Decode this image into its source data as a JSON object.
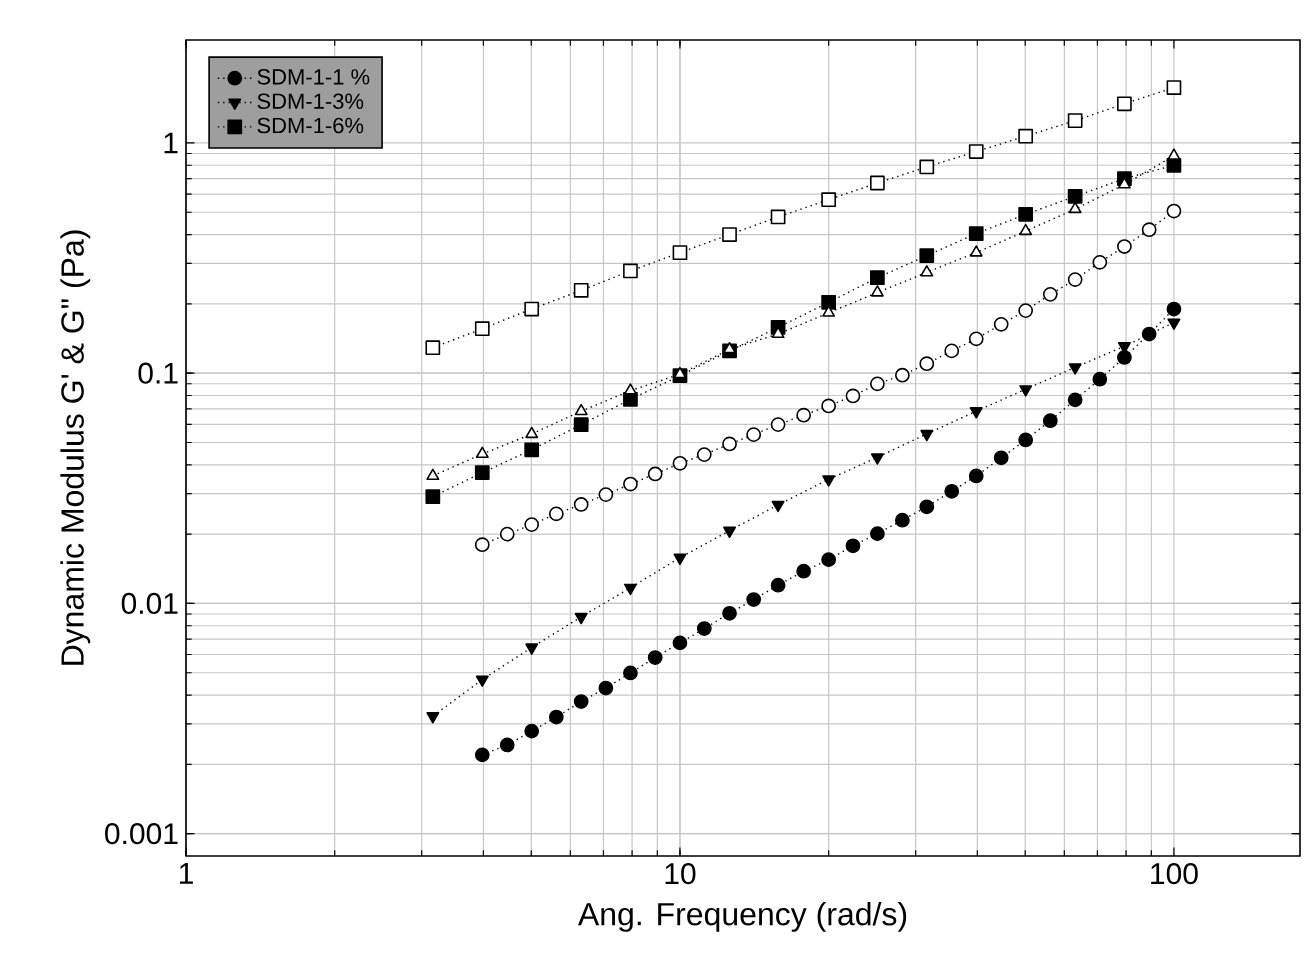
{
  "chart_data": {
    "type": "line",
    "xlabel": "Ang. Frequency (rad/s)",
    "ylabel": "Dynamic Modulus G' & G\" (Pa)",
    "log": "xy",
    "xlim": [
      1,
      180
    ],
    "ylim": [
      0.0008,
      2.8
    ],
    "xticks": [
      1,
      10,
      100
    ],
    "yticks": [
      0.001,
      0.01,
      0.1,
      1
    ],
    "grid": true,
    "legend": "top left",
    "line_style": "dotted",
    "series": [
      {
        "name": "SDM-1-1 %",
        "color": "#000000",
        "marker": "circle",
        "x": [
          3.98,
          4.47,
          5.01,
          5.62,
          6.31,
          7.08,
          7.94,
          8.91,
          10,
          11.2,
          12.6,
          14.1,
          15.8,
          17.8,
          20,
          22.4,
          25.1,
          28.2,
          31.6,
          35.5,
          39.8,
          44.7,
          50.1,
          56.2,
          63.1,
          70.8,
          79.4,
          89.1,
          100
        ],
        "values": [
          0.0022,
          0.00243,
          0.00279,
          0.00321,
          0.00375,
          0.00429,
          0.00499,
          0.00582,
          0.00674,
          0.00778,
          0.00906,
          0.0104,
          0.012,
          0.0138,
          0.0155,
          0.0178,
          0.0201,
          0.023,
          0.0263,
          0.0307,
          0.0358,
          0.0429,
          0.0513,
          0.0622,
          0.0766,
          0.0942,
          0.117,
          0.148,
          0.19
        ]
      },
      {
        "name": "SDM-1-3%",
        "color": "#000000",
        "marker": "triangle-down",
        "x": [
          3.16,
          3.98,
          5.01,
          6.31,
          7.94,
          10,
          12.6,
          15.8,
          20,
          25.1,
          31.6,
          39.8,
          50.1,
          63.1,
          79.4,
          100
        ],
        "values": [
          0.00324,
          0.00467,
          0.00644,
          0.00874,
          0.0117,
          0.0158,
          0.0207,
          0.0268,
          0.0346,
          0.0431,
          0.0545,
          0.0684,
          0.0852,
          0.106,
          0.131,
          0.166
        ]
      },
      {
        "name": "SDM-1-6%",
        "color": "#000000",
        "marker": "square",
        "x": [
          3.16,
          3.98,
          5.01,
          6.31,
          7.94,
          10,
          12.6,
          15.8,
          20,
          25.1,
          31.6,
          39.8,
          50.1,
          63.1,
          79.4,
          100
        ],
        "values": [
          0.0291,
          0.037,
          0.0465,
          0.0598,
          0.077,
          0.0975,
          0.125,
          0.158,
          0.203,
          0.26,
          0.324,
          0.404,
          0.49,
          0.586,
          0.7,
          0.8
        ]
      },
      {
        "color": "#000000",
        "marker": "circle-open",
        "x": [
          3.98,
          4.47,
          5.01,
          5.62,
          6.31,
          7.08,
          7.94,
          8.91,
          10,
          11.2,
          12.6,
          14.1,
          15.8,
          17.8,
          20,
          22.4,
          25.1,
          28.2,
          31.6,
          35.5,
          39.8,
          44.7,
          50.1,
          56.2,
          63.1,
          70.8,
          79.4,
          89.1,
          100
        ],
        "values": [
          0.018,
          0.02,
          0.022,
          0.0245,
          0.0269,
          0.0297,
          0.033,
          0.0365,
          0.0406,
          0.0443,
          0.0493,
          0.0541,
          0.0598,
          0.0657,
          0.0721,
          0.0797,
          0.0899,
          0.098,
          0.11,
          0.125,
          0.141,
          0.163,
          0.187,
          0.22,
          0.255,
          0.303,
          0.355,
          0.42,
          0.506
        ]
      },
      {
        "color": "#000000",
        "marker": "triangle-open",
        "x": [
          3.16,
          3.98,
          5.01,
          6.31,
          7.94,
          10,
          12.6,
          15.8,
          20,
          25.1,
          31.6,
          39.8,
          50.1,
          63.1,
          79.4,
          100
        ],
        "values": [
          0.0358,
          0.0446,
          0.0544,
          0.0684,
          0.084,
          0.099,
          0.127,
          0.148,
          0.183,
          0.224,
          0.274,
          0.334,
          0.414,
          0.516,
          0.66,
          0.88
        ]
      },
      {
        "color": "#000000",
        "marker": "square-open",
        "x": [
          3.16,
          3.98,
          5.01,
          6.31,
          7.94,
          10,
          12.6,
          15.8,
          20,
          25.1,
          31.6,
          39.8,
          50.1,
          63.1,
          79.4,
          100
        ],
        "values": [
          0.129,
          0.156,
          0.19,
          0.229,
          0.278,
          0.334,
          0.4,
          0.477,
          0.567,
          0.67,
          0.787,
          0.918,
          1.07,
          1.25,
          1.48,
          1.74
        ]
      }
    ]
  }
}
